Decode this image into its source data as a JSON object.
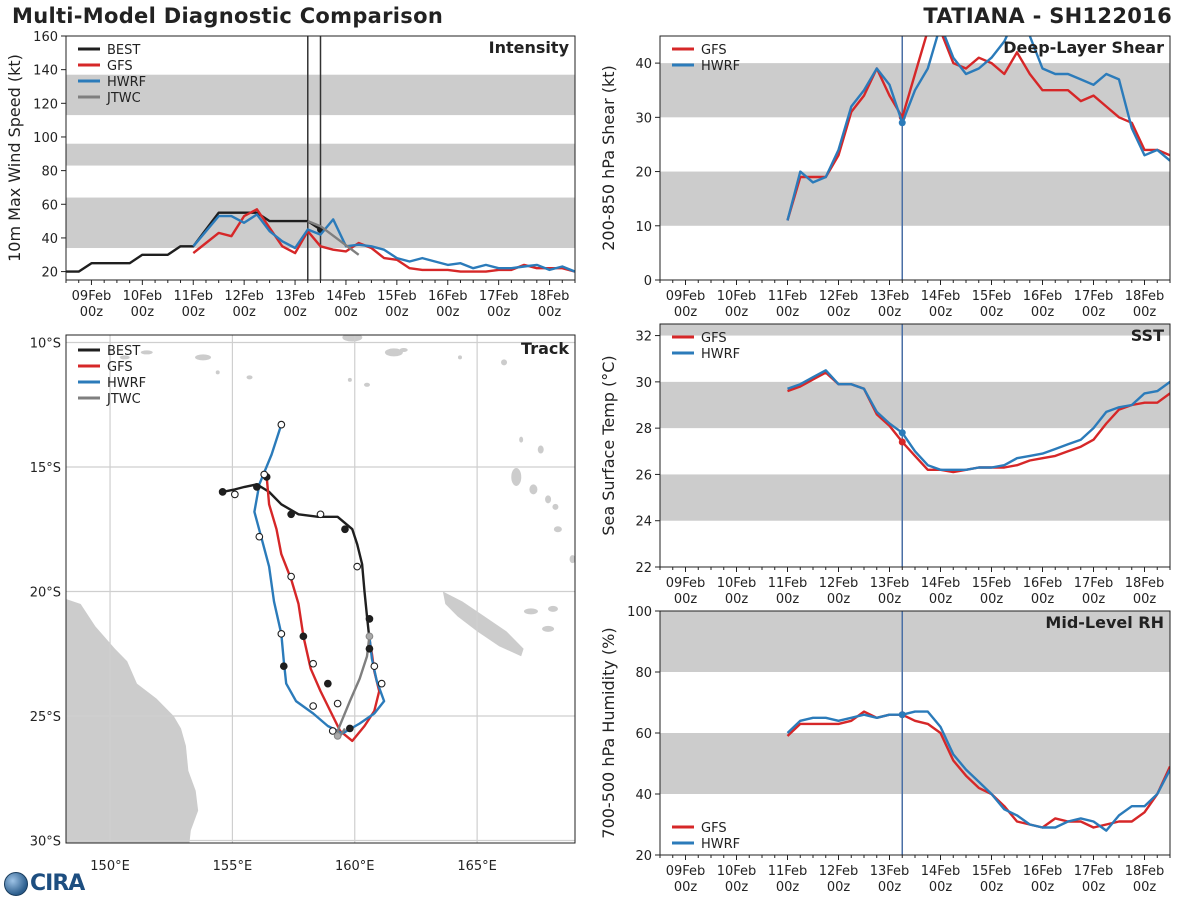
{
  "header": {
    "title": "Multi-Model Diagnostic Comparison",
    "storm": "TATIANA - SH122016"
  },
  "logo": {
    "text": "CIRA"
  },
  "colors": {
    "BEST": "#1f1f1f",
    "GFS": "#d62728",
    "HWRF": "#2b7bba",
    "JTWC": "#7f7f7f",
    "band": "#cccccc",
    "grid": "#cfcfcf",
    "vline": "#4a6fa5"
  },
  "time_axis": {
    "day0": "09Feb",
    "range_days": [
      -0.5,
      9.5
    ],
    "day_labels": [
      "09Feb",
      "10Feb",
      "11Feb",
      "12Feb",
      "13Feb",
      "14Feb",
      "15Feb",
      "16Feb",
      "17Feb",
      "18Feb"
    ],
    "hour_label": "00z"
  },
  "chart_data": [
    {
      "name": "Intensity",
      "type": "line",
      "title": "Intensity",
      "ylabel": "10m Max Wind Speed (kt)",
      "ylim": [
        15,
        160
      ],
      "yticks": [
        20,
        40,
        60,
        80,
        100,
        120,
        140,
        160
      ],
      "bands": [
        [
          34,
          64
        ],
        [
          83,
          96
        ],
        [
          113,
          137
        ]
      ],
      "vlines": [
        4.25,
        4.5
      ],
      "vline_color": "#333333",
      "legend": [
        "BEST",
        "GFS",
        "HWRF",
        "JTWC"
      ],
      "series": [
        {
          "name": "BEST",
          "t": [
            -0.5,
            -0.25,
            0,
            0.25,
            0.5,
            0.75,
            1,
            1.25,
            1.5,
            1.75,
            2,
            2.25,
            2.5,
            2.75,
            3,
            3.25,
            3.5,
            3.75,
            4,
            4.25,
            4.5
          ],
          "v": [
            20,
            20,
            25,
            25,
            25,
            25,
            30,
            30,
            30,
            35,
            35,
            45,
            55,
            55,
            55,
            55,
            50,
            50,
            50,
            50,
            45
          ],
          "end_marker": true
        },
        {
          "name": "GFS",
          "t": [
            2,
            2.25,
            2.5,
            2.75,
            3,
            3.25,
            3.5,
            3.75,
            4,
            4.25,
            4.5,
            4.75,
            5,
            5.25,
            5.5,
            5.75,
            6,
            6.25,
            6.5,
            6.75,
            7,
            7.25,
            7.5,
            7.75,
            8,
            8.25,
            8.5,
            8.75,
            9,
            9.25,
            9.5
          ],
          "v": [
            31,
            37,
            43,
            41,
            53,
            57,
            46,
            35,
            31,
            44,
            35,
            33,
            32,
            37,
            34,
            28,
            27,
            22,
            21,
            21,
            21,
            20,
            20,
            20,
            21,
            21,
            24,
            22,
            22,
            22,
            20
          ]
        },
        {
          "name": "HWRF",
          "t": [
            2,
            2.25,
            2.5,
            2.75,
            3,
            3.25,
            3.5,
            3.75,
            4,
            4.25,
            4.5,
            4.75,
            5,
            5.25,
            5.5,
            5.75,
            6,
            6.25,
            6.5,
            6.75,
            7,
            7.25,
            7.5,
            7.75,
            8,
            8.25,
            8.5,
            8.75,
            9,
            9.25,
            9.5
          ],
          "v": [
            35,
            44,
            53,
            53,
            49,
            54,
            44,
            38,
            34,
            45,
            42,
            51,
            35,
            36,
            35,
            33,
            28,
            26,
            28,
            26,
            24,
            25,
            22,
            24,
            22,
            22,
            23,
            24,
            21,
            23,
            20
          ]
        },
        {
          "name": "JTWC",
          "t": [
            4.25,
            4.5,
            5.25
          ],
          "v": [
            50,
            47,
            30
          ]
        }
      ]
    },
    {
      "name": "Deep-Layer Shear",
      "type": "line",
      "title": "Deep-Layer Shear",
      "ylabel": "200-850 hPa Shear (kt)",
      "ylim": [
        0,
        45
      ],
      "yticks": [
        0,
        10,
        20,
        30,
        40
      ],
      "bands": [
        [
          10,
          20
        ],
        [
          30,
          40
        ]
      ],
      "vlines": [
        4.25
      ],
      "vline_color": "#4a6fa5",
      "legend": [
        "GFS",
        "HWRF"
      ],
      "series": [
        {
          "name": "GFS",
          "t": [
            2,
            2.25,
            2.5,
            2.75,
            3,
            3.25,
            3.5,
            3.75,
            4,
            4.25,
            4.5,
            4.75,
            5,
            5.25,
            5.5,
            5.75,
            6,
            6.25,
            6.5,
            6.75,
            7,
            7.25,
            7.5,
            7.75,
            8,
            8.25,
            8.5,
            8.75,
            9,
            9.25,
            9.5
          ],
          "v": [
            11,
            19,
            19,
            19,
            23,
            31,
            34,
            39,
            34,
            30,
            38,
            46,
            46,
            40,
            39,
            41,
            40,
            38,
            42,
            38,
            35,
            35,
            35,
            33,
            34,
            32,
            30,
            29,
            24,
            24,
            23
          ],
          "marker_t": 4.25
        },
        {
          "name": "HWRF",
          "t": [
            2,
            2.25,
            2.5,
            2.75,
            3,
            3.25,
            3.5,
            3.75,
            4,
            4.25,
            4.5,
            4.75,
            5,
            5.25,
            5.5,
            5.75,
            6,
            6.25,
            6.5,
            6.75,
            7,
            7.25,
            7.5,
            7.75,
            8,
            8.25,
            8.5,
            8.75,
            9,
            9.25,
            9.5
          ],
          "v": [
            11,
            20,
            18,
            19,
            24,
            32,
            35,
            39,
            36,
            29,
            35,
            39,
            47,
            41,
            38,
            39,
            41,
            44,
            49,
            45,
            39,
            38,
            38,
            37,
            36,
            38,
            37,
            28,
            23,
            24,
            22
          ],
          "marker_t": 4.25
        }
      ]
    },
    {
      "name": "SST",
      "type": "line",
      "title": "SST",
      "ylabel": "Sea Surface Temp (°C)",
      "ylim": [
        22,
        32.5
      ],
      "yticks": [
        22,
        24,
        26,
        28,
        30,
        32
      ],
      "bands": [
        [
          24,
          26
        ],
        [
          28,
          30
        ],
        [
          32,
          32.5
        ]
      ],
      "vlines": [
        4.25
      ],
      "vline_color": "#4a6fa5",
      "legend": [
        "GFS",
        "HWRF"
      ],
      "series": [
        {
          "name": "GFS",
          "t": [
            2,
            2.25,
            2.5,
            2.75,
            3,
            3.25,
            3.5,
            3.75,
            4,
            4.25,
            4.5,
            4.75,
            5,
            5.25,
            5.5,
            5.75,
            6,
            6.25,
            6.5,
            6.75,
            7,
            7.25,
            7.5,
            7.75,
            8,
            8.25,
            8.5,
            8.75,
            9,
            9.25,
            9.5
          ],
          "v": [
            29.6,
            29.8,
            30.1,
            30.4,
            29.9,
            29.9,
            29.7,
            28.6,
            28.1,
            27.4,
            26.8,
            26.2,
            26.2,
            26.1,
            26.2,
            26.3,
            26.3,
            26.3,
            26.4,
            26.6,
            26.7,
            26.8,
            27.0,
            27.2,
            27.5,
            28.2,
            28.8,
            29.0,
            29.1,
            29.1,
            29.5
          ],
          "marker_t": 4.25
        },
        {
          "name": "HWRF",
          "t": [
            2,
            2.25,
            2.5,
            2.75,
            3,
            3.25,
            3.5,
            3.75,
            4,
            4.25,
            4.5,
            4.75,
            5,
            5.25,
            5.5,
            5.75,
            6,
            6.25,
            6.5,
            6.75,
            7,
            7.25,
            7.5,
            7.75,
            8,
            8.25,
            8.5,
            8.75,
            9,
            9.25,
            9.5
          ],
          "v": [
            29.7,
            29.9,
            30.2,
            30.5,
            29.9,
            29.9,
            29.7,
            28.7,
            28.2,
            27.8,
            27.0,
            26.4,
            26.2,
            26.2,
            26.2,
            26.3,
            26.3,
            26.4,
            26.7,
            26.8,
            26.9,
            27.1,
            27.3,
            27.5,
            28.0,
            28.7,
            28.9,
            29.0,
            29.5,
            29.6,
            30.0
          ],
          "marker_t": 4.25
        }
      ]
    },
    {
      "name": "Mid-Level RH",
      "type": "line",
      "title": "Mid-Level RH",
      "ylabel": "700-500 hPa Humidity (%)",
      "ylim": [
        20,
        100
      ],
      "yticks": [
        20,
        40,
        60,
        80,
        100
      ],
      "bands": [
        [
          40,
          60
        ],
        [
          80,
          100
        ]
      ],
      "vlines": [
        4.25
      ],
      "vline_color": "#4a6fa5",
      "legend": [
        "GFS",
        "HWRF"
      ],
      "legend_pos": "bottom-left",
      "series": [
        {
          "name": "GFS",
          "t": [
            2,
            2.25,
            2.5,
            2.75,
            3,
            3.25,
            3.5,
            3.75,
            4,
            4.25,
            4.5,
            4.75,
            5,
            5.25,
            5.5,
            5.75,
            6,
            6.25,
            6.5,
            6.75,
            7,
            7.25,
            7.5,
            7.75,
            8,
            8.25,
            8.5,
            8.75,
            9,
            9.25,
            9.5
          ],
          "v": [
            59,
            63,
            63,
            63,
            63,
            64,
            67,
            65,
            66,
            66,
            64,
            63,
            60,
            51,
            46,
            42,
            40,
            36,
            31,
            30,
            29,
            32,
            31,
            31,
            29,
            30,
            31,
            31,
            34,
            40,
            49
          ],
          "marker_t": 4.25
        },
        {
          "name": "HWRF",
          "t": [
            2,
            2.25,
            2.5,
            2.75,
            3,
            3.25,
            3.5,
            3.75,
            4,
            4.25,
            4.5,
            4.75,
            5,
            5.25,
            5.5,
            5.75,
            6,
            6.25,
            6.5,
            6.75,
            7,
            7.25,
            7.5,
            7.75,
            8,
            8.25,
            8.5,
            8.75,
            9,
            9.25,
            9.5
          ],
          "v": [
            60,
            64,
            65,
            65,
            64,
            65,
            66,
            65,
            66,
            66,
            67,
            67,
            62,
            53,
            48,
            44,
            40,
            35,
            33,
            30,
            29,
            29,
            31,
            32,
            31,
            28,
            33,
            36,
            36,
            40,
            48
          ],
          "marker_t": 4.25
        }
      ]
    },
    {
      "name": "Track",
      "type": "line",
      "title": "Track",
      "xlim": [
        148.2,
        169.0
      ],
      "ylim": [
        -30.1,
        -9.7
      ],
      "xticks": [
        150,
        155,
        160,
        165
      ],
      "xtick_labels": [
        "150°E",
        "155°E",
        "160°E",
        "165°E"
      ],
      "yticks": [
        -10,
        -15,
        -20,
        -25,
        -30
      ],
      "ytick_labels": [
        "10°S",
        "15°S",
        "20°S",
        "25°S",
        "30°S"
      ],
      "legend": [
        "BEST",
        "GFS",
        "HWRF",
        "JTWC"
      ],
      "series": [
        {
          "name": "BEST",
          "lon": [
            154.6,
            155.1,
            155.5,
            156.0,
            156.5,
            157.0,
            157.7,
            158.5,
            159.3,
            159.9,
            160.1,
            160.3,
            160.4,
            160.5,
            160.6
          ],
          "lat": [
            -16.0,
            -15.9,
            -15.8,
            -15.7,
            -16.0,
            -16.5,
            -16.9,
            -17.0,
            -17.0,
            -17.5,
            -18.1,
            -18.9,
            -20.0,
            -21.0,
            -21.9
          ],
          "markers": [
            [
              154.6,
              -16.0,
              "f"
            ],
            [
              155.1,
              -16.1,
              "o"
            ],
            [
              156.0,
              -15.8,
              "f"
            ],
            [
              157.4,
              -16.9,
              "f"
            ],
            [
              158.6,
              -16.9,
              "o"
            ],
            [
              159.6,
              -17.5,
              "f"
            ],
            [
              160.1,
              -19.0,
              "o"
            ],
            [
              160.6,
              -21.1,
              "f"
            ]
          ]
        },
        {
          "name": "GFS",
          "lon": [
            156.4,
            156.5,
            156.8,
            157.0,
            157.4,
            157.7,
            157.9,
            158.2,
            158.6,
            159.0,
            159.4,
            159.9,
            160.4,
            160.8,
            161.0,
            160.8,
            160.7,
            160.6
          ],
          "lat": [
            -15.4,
            -16.5,
            -17.5,
            -18.5,
            -19.5,
            -20.5,
            -21.8,
            -23.1,
            -24.0,
            -24.8,
            -25.6,
            -26.0,
            -25.4,
            -24.8,
            -24.0,
            -23.2,
            -22.5,
            -21.9
          ],
          "markers": [
            [
              156.4,
              -15.4,
              "f"
            ],
            [
              157.4,
              -19.4,
              "o"
            ],
            [
              157.9,
              -21.8,
              "f"
            ],
            [
              158.3,
              -22.9,
              "o"
            ],
            [
              158.9,
              -23.7,
              "f"
            ],
            [
              159.3,
              -24.5,
              "o"
            ],
            [
              159.8,
              -25.5,
              "f"
            ],
            [
              160.6,
              -22.3,
              "f"
            ]
          ]
        },
        {
          "name": "HWRF",
          "lon": [
            157.0,
            156.6,
            156.1,
            155.9,
            156.2,
            156.5,
            156.7,
            157.0,
            157.1,
            157.2,
            157.6,
            158.3,
            158.9,
            159.5,
            160.2,
            160.8,
            161.2,
            160.9,
            160.7,
            160.6
          ],
          "lat": [
            -13.3,
            -14.5,
            -15.7,
            -16.8,
            -17.9,
            -19.0,
            -20.4,
            -21.7,
            -22.8,
            -23.7,
            -24.4,
            -24.9,
            -25.4,
            -25.7,
            -25.3,
            -24.9,
            -24.4,
            -23.6,
            -22.7,
            -21.8
          ],
          "markers": [
            [
              157.0,
              -13.3,
              "o"
            ],
            [
              156.3,
              -15.3,
              "o"
            ],
            [
              156.1,
              -17.8,
              "o"
            ],
            [
              157.0,
              -21.7,
              "o"
            ],
            [
              157.1,
              -23.0,
              "f"
            ],
            [
              158.3,
              -24.6,
              "o"
            ],
            [
              159.1,
              -25.6,
              "o"
            ],
            [
              160.8,
              -23.0,
              "o"
            ],
            [
              161.1,
              -23.7,
              "o"
            ]
          ]
        },
        {
          "name": "JTWC",
          "lon": [
            160.6,
            160.5,
            160.2,
            159.8,
            159.3,
            159.4,
            159.6
          ],
          "lat": [
            -21.8,
            -22.6,
            -23.5,
            -24.4,
            -25.6,
            -25.8,
            -25.5
          ],
          "markers": [
            [
              160.6,
              -21.8,
              "g"
            ],
            [
              159.3,
              -25.8,
              "g"
            ]
          ]
        }
      ]
    }
  ]
}
